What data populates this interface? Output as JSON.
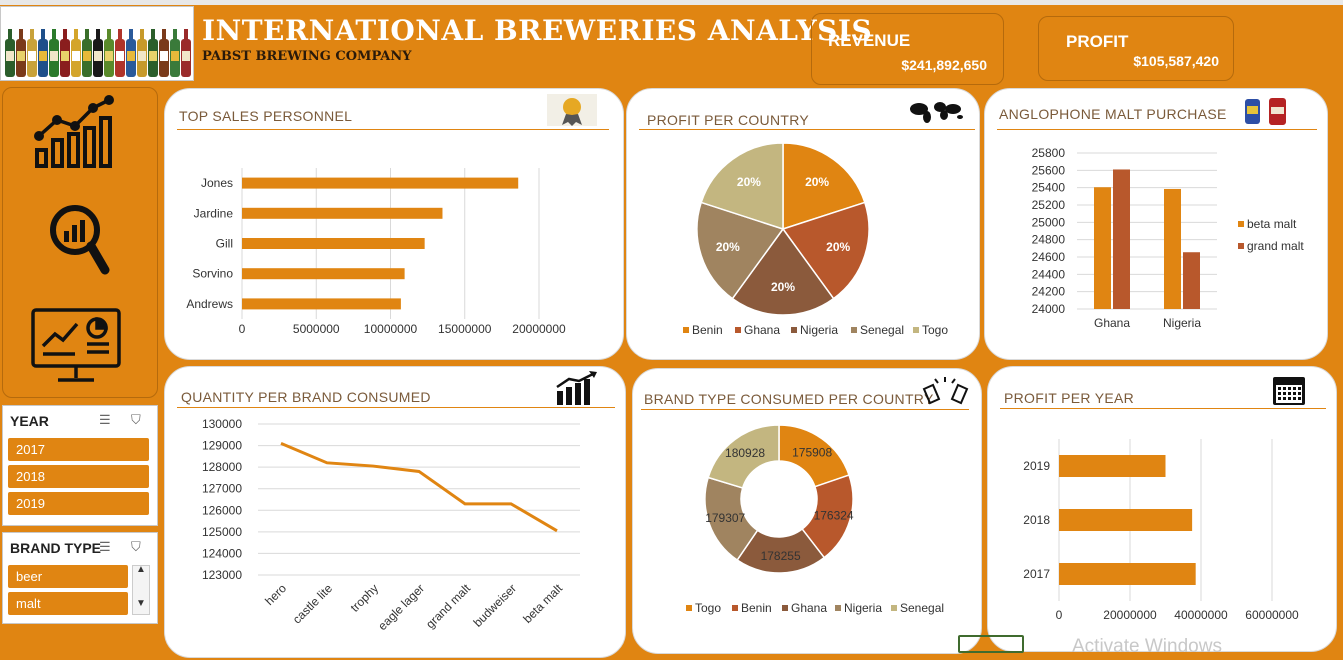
{
  "header": {
    "title": "INTERNATIONAL BREWERIES ANALYSIS",
    "subtitle": "PABST BREWING COMPANY"
  },
  "kpis": {
    "revenue_label": "REVENUE",
    "revenue_value": "$241,892,650",
    "profit_label": "PROFIT",
    "profit_value": "$105,587,420"
  },
  "nav": {
    "icons": [
      "line-bar-chart-icon",
      "magnifier-chart-icon",
      "monitor-dashboard-icon"
    ]
  },
  "slicers": {
    "year": {
      "label": "YEAR",
      "options": [
        "2017",
        "2018",
        "2019"
      ]
    },
    "brand_type": {
      "label": "BRAND TYPE",
      "options": [
        "beer",
        "malt"
      ]
    }
  },
  "cards": {
    "top_sales": "TOP SALES PERSONNEL",
    "profit_country": "PROFIT PER COUNTRY",
    "anglophone": "ANGLOPHONE MALT PURCHASE",
    "quantity_brand": "QUANTITY PER BRAND CONSUMED",
    "brand_type_country": "BRAND TYPE CONSUMED PER COUNTRY",
    "profit_year": "PROFIT PER YEAR"
  },
  "colors": {
    "orange": "#E08512",
    "rust": "#B8582C",
    "brown": "#8B5A3C",
    "taupe": "#A08460",
    "khaki": "#C3B680"
  },
  "watermark": "Activate Windows",
  "chart_data": [
    {
      "id": "top_sales",
      "type": "bar",
      "orientation": "horizontal",
      "categories": [
        "Jones",
        "Jardine",
        "Gill",
        "Sorvino",
        "Andrews"
      ],
      "values": [
        18600000,
        13500000,
        12300000,
        10950000,
        10700000
      ],
      "xlim": [
        0,
        20000000
      ],
      "xticks": [
        "0",
        "5000000",
        "10000000",
        "15000000",
        "20000000"
      ]
    },
    {
      "id": "profit_country",
      "type": "pie",
      "labels": [
        "Benin",
        "Ghana",
        "Nigeria",
        "Senegal",
        "Togo"
      ],
      "values": [
        20,
        20,
        20,
        20,
        20
      ],
      "value_labels": [
        "20%",
        "20%",
        "20%",
        "20%",
        "20%"
      ],
      "legend": "bottom"
    },
    {
      "id": "anglophone",
      "type": "bar",
      "categories": [
        "Ghana",
        "Nigeria"
      ],
      "series": [
        {
          "name": "beta malt",
          "values": [
            25405,
            25385
          ]
        },
        {
          "name": "grand malt",
          "values": [
            25610,
            24655
          ]
        }
      ],
      "ylim": [
        24000,
        25800
      ],
      "yticks": [
        "24000",
        "24200",
        "24400",
        "24600",
        "24800",
        "25000",
        "25200",
        "25400",
        "25600",
        "25800"
      ],
      "legend": "right"
    },
    {
      "id": "quantity_brand",
      "type": "line",
      "categories": [
        "hero",
        "castle lite",
        "trophy",
        "eagle lager",
        "grand malt",
        "budweiser",
        "beta malt"
      ],
      "values": [
        129100,
        128200,
        128050,
        127800,
        126300,
        126300,
        125050
      ],
      "ylim": [
        123000,
        130000
      ],
      "yticks": [
        "123000",
        "124000",
        "125000",
        "126000",
        "127000",
        "128000",
        "129000",
        "130000"
      ]
    },
    {
      "id": "brand_type_country",
      "type": "pie",
      "donut": true,
      "labels": [
        "Togo",
        "Benin",
        "Ghana",
        "Nigeria",
        "Senegal"
      ],
      "values": [
        175908,
        176324,
        178255,
        179307,
        180928
      ],
      "value_labels": [
        "175908",
        "176324",
        "178255",
        "179307",
        "180928"
      ],
      "legend": "bottom"
    },
    {
      "id": "profit_year",
      "type": "bar",
      "orientation": "horizontal",
      "categories": [
        "2019",
        "2018",
        "2017"
      ],
      "values": [
        30000000,
        37500000,
        38500000
      ],
      "xlim": [
        0,
        60000000
      ],
      "xticks": [
        "0",
        "20000000",
        "40000000",
        "60000000"
      ]
    }
  ]
}
